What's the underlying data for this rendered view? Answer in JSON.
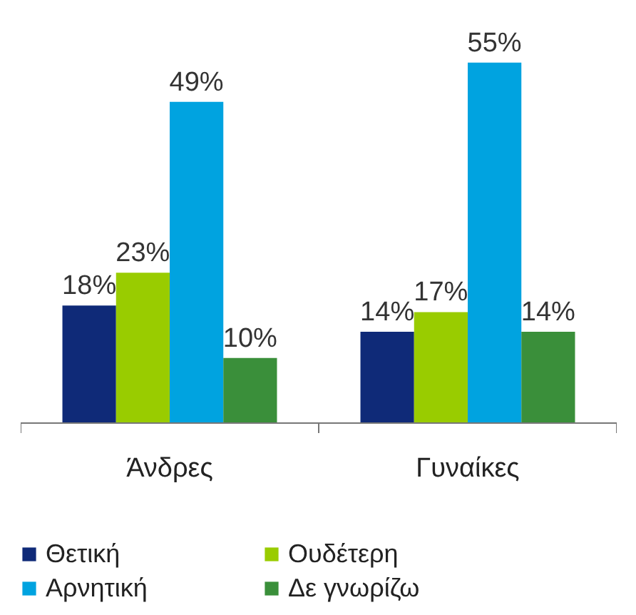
{
  "chart_data": {
    "type": "bar",
    "categories": [
      "Άνδρες",
      "Γυναίκες"
    ],
    "series": [
      {
        "name": "Θετική",
        "color": "#0f2a78",
        "values": [
          18,
          14
        ],
        "value_labels": [
          "18%",
          "14%"
        ]
      },
      {
        "name": "Ουδέτερη",
        "color": "#99cc00",
        "values": [
          23,
          17
        ],
        "value_labels": [
          "23%",
          "17%"
        ]
      },
      {
        "name": "Αρνητική",
        "color": "#00a3e0",
        "values": [
          49,
          55
        ],
        "value_labels": [
          "49%",
          "55%"
        ]
      },
      {
        "name": "Δε γνωρίζω",
        "color": "#3a8f3a",
        "values": [
          10,
          14
        ],
        "value_labels": [
          "10%",
          "14%"
        ]
      }
    ],
    "legend": "bottom"
  }
}
